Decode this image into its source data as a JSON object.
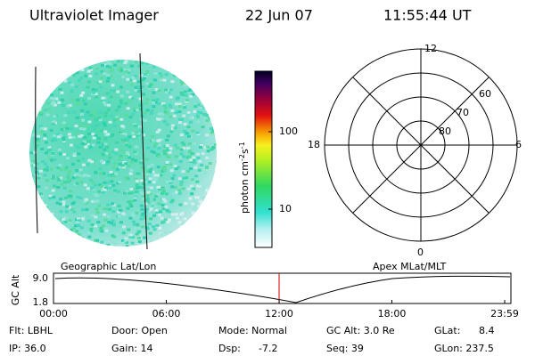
{
  "header": {
    "title": "Ultraviolet Imager",
    "date": "22 Jun 07",
    "time": "11:55:44 UT"
  },
  "colorbar": {
    "label": {
      "base": "photon cm",
      "exp1": "-2",
      "unit2": "s",
      "exp2": "-1"
    },
    "ticks": [
      "100",
      "10"
    ]
  },
  "polar": {
    "mlt_labels": {
      "top": "12",
      "right": "6",
      "bottom": "0",
      "left": "18"
    },
    "lat_labels": [
      "60",
      "70",
      "80"
    ]
  },
  "gc_alt_plot": {
    "ylabel": "GC Alt",
    "left_title": "Geographic Lat/Lon",
    "right_title": "Apex MLat/MLT",
    "yticks": [
      "9.0",
      "1.8"
    ],
    "xticks": [
      "00:00",
      "06:00",
      "12:00",
      "18:00",
      "23:59"
    ]
  },
  "footer": {
    "rows": [
      [
        "Flt: LBHL",
        "Door: Open",
        "Mode: Normal",
        "GC Alt: 3.0 Re",
        "GLat:",
        "8.4"
      ],
      [
        "IP: 36.0",
        "Gain: 14",
        "Dsp:",
        "-7.2",
        "Seq: 39",
        "GLon: 237.5"
      ]
    ]
  }
}
